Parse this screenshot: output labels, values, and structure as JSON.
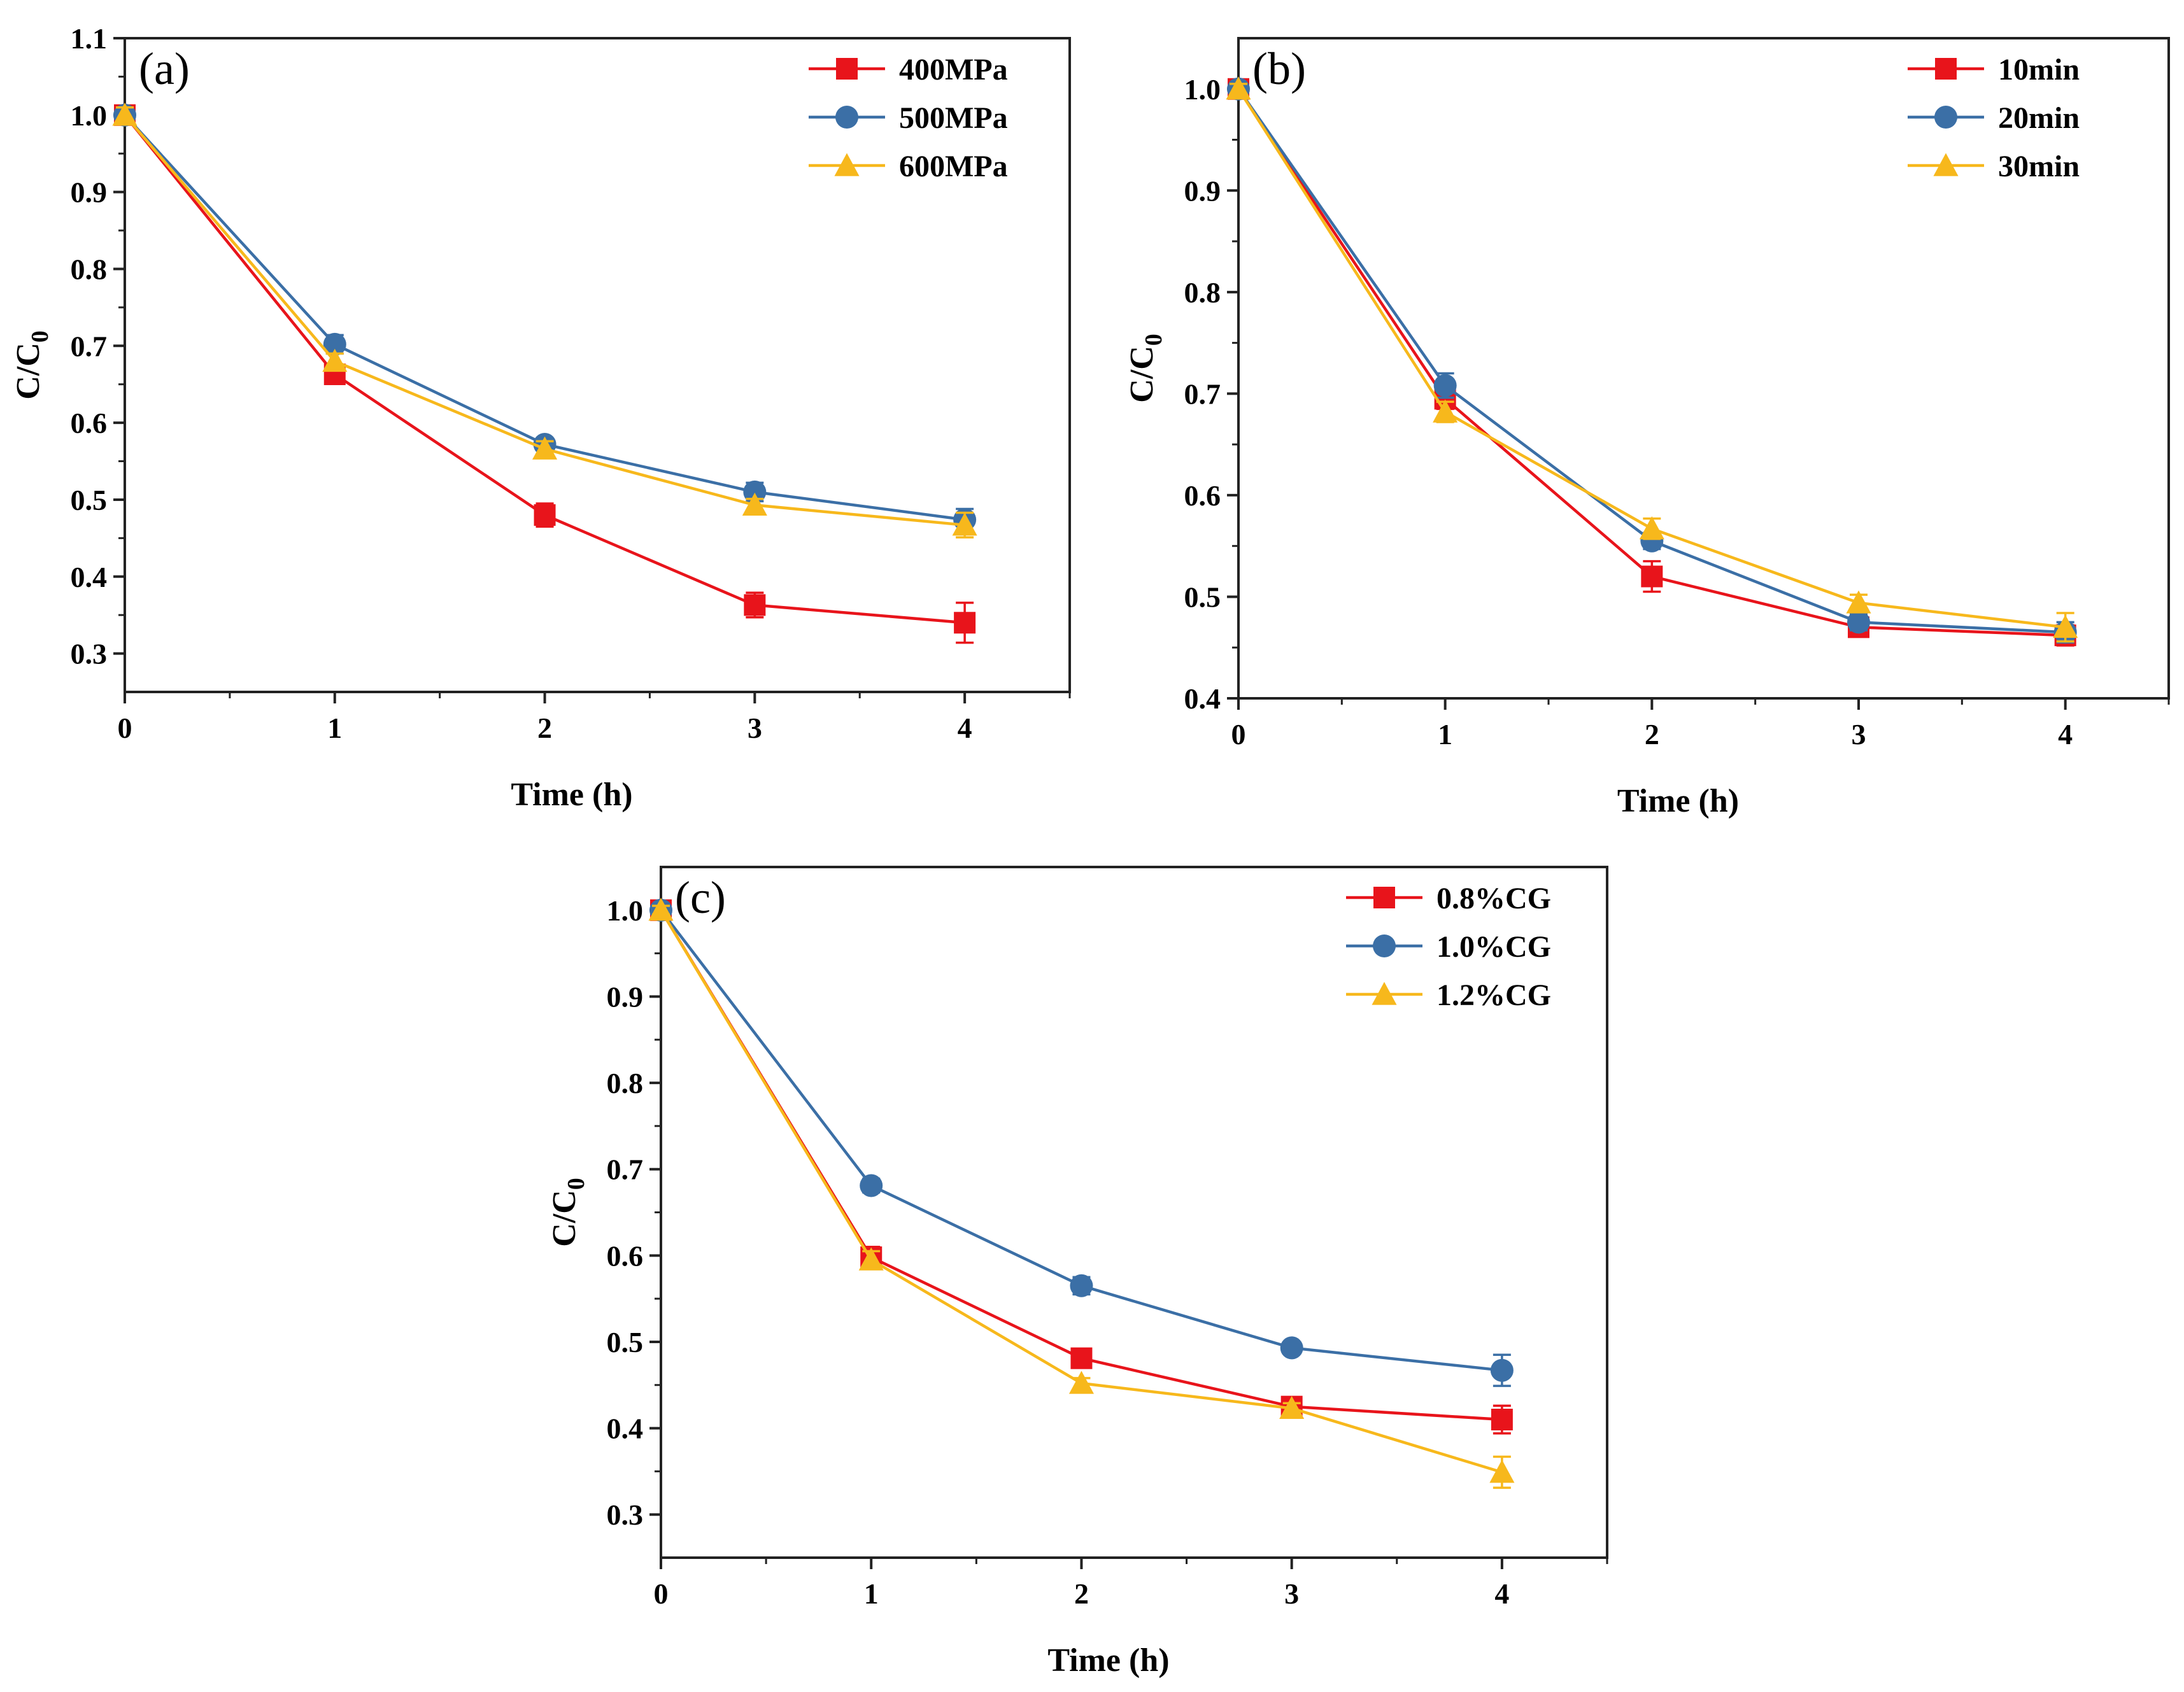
{
  "colors": {
    "red": "#e8141b",
    "blue": "#3b6fa6",
    "yellow": "#f7b81c"
  },
  "chart_data": [
    {
      "type": "line",
      "panel_label": "(a)",
      "xlabel": "Time (h)",
      "ylabel": "C/C",
      "ylabel_sub": "0",
      "xlim": [
        0,
        4.5
      ],
      "ylim": [
        0.25,
        1.1
      ],
      "xticks": [
        0,
        1,
        2,
        3,
        4
      ],
      "yticks": [
        0.3,
        0.4,
        0.5,
        0.6,
        0.7,
        0.8,
        0.9,
        1.0,
        1.1
      ],
      "ytick_labels": [
        "0.3",
        "0.4",
        "0.5",
        "0.6",
        "0.7",
        "0.8",
        "0.9",
        "1.0",
        "1.1"
      ],
      "legend_position": "top-right",
      "x": [
        0,
        1,
        2,
        3,
        4
      ],
      "series": [
        {
          "name": "400MPa",
          "color": "red",
          "marker": "square",
          "values": [
            1.0,
            0.663,
            0.48,
            0.363,
            0.34
          ],
          "errors": [
            0.01,
            0.008,
            0.015,
            0.016,
            0.026
          ]
        },
        {
          "name": "500MPa",
          "color": "blue",
          "marker": "circle",
          "values": [
            1.0,
            0.702,
            0.572,
            0.51,
            0.474
          ],
          "errors": [
            0.01,
            0.012,
            0.008,
            0.012,
            0.014
          ]
        },
        {
          "name": "600MPa",
          "color": "yellow",
          "marker": "triangle",
          "values": [
            1.0,
            0.68,
            0.566,
            0.493,
            0.467
          ],
          "errors": [
            0.01,
            0.01,
            0.01,
            0.008,
            0.016
          ]
        }
      ]
    },
    {
      "type": "line",
      "panel_label": "(b)",
      "xlabel": "Time (h)",
      "ylabel": "C/C",
      "ylabel_sub": "0",
      "xlim": [
        0,
        4.5
      ],
      "ylim": [
        0.4,
        1.05
      ],
      "xticks": [
        0,
        1,
        2,
        3,
        4
      ],
      "yticks": [
        0.4,
        0.5,
        0.6,
        0.7,
        0.8,
        0.9,
        1.0
      ],
      "ytick_labels": [
        "0.4",
        "0.5",
        "0.6",
        "0.7",
        "0.8",
        "0.9",
        "1.0"
      ],
      "legend_position": "top-right",
      "x": [
        0,
        1,
        2,
        3,
        4
      ],
      "series": [
        {
          "name": "10min",
          "color": "red",
          "marker": "square",
          "values": [
            1.0,
            0.695,
            0.52,
            0.47,
            0.462
          ],
          "errors": [
            0.005,
            0.01,
            0.015,
            0.008,
            0.01
          ]
        },
        {
          "name": "20min",
          "color": "blue",
          "marker": "circle",
          "values": [
            1.0,
            0.708,
            0.555,
            0.475,
            0.465
          ],
          "errors": [
            0.005,
            0.012,
            0.008,
            0.008,
            0.01
          ]
        },
        {
          "name": "30min",
          "color": "yellow",
          "marker": "triangle",
          "values": [
            1.0,
            0.682,
            0.567,
            0.494,
            0.47
          ],
          "errors": [
            0.005,
            0.01,
            0.01,
            0.008,
            0.014
          ]
        }
      ]
    },
    {
      "type": "line",
      "panel_label": "(c)",
      "xlabel": "Time (h)",
      "ylabel": "C/C",
      "ylabel_sub": "0",
      "xlim": [
        0,
        4.5
      ],
      "ylim": [
        0.25,
        1.05
      ],
      "xticks": [
        0,
        1,
        2,
        3,
        4
      ],
      "yticks": [
        0.3,
        0.4,
        0.5,
        0.6,
        0.7,
        0.8,
        0.9,
        1.0
      ],
      "ytick_labels": [
        "0.3",
        "0.4",
        "0.5",
        "0.6",
        "0.7",
        "0.8",
        "0.9",
        "1.0"
      ],
      "legend_position": "top-right",
      "x": [
        0,
        1,
        2,
        3,
        4
      ],
      "series": [
        {
          "name": "0.8%CG",
          "color": "red",
          "marker": "square",
          "values": [
            1.0,
            0.598,
            0.481,
            0.425,
            0.41
          ],
          "errors": [
            0.005,
            0.012,
            0.008,
            0.008,
            0.016
          ]
        },
        {
          "name": "1.0%CG",
          "color": "blue",
          "marker": "circle",
          "values": [
            1.0,
            0.681,
            0.565,
            0.493,
            0.467
          ],
          "errors": [
            0.005,
            0.008,
            0.01,
            0.006,
            0.018
          ]
        },
        {
          "name": "1.2%CG",
          "color": "yellow",
          "marker": "triangle",
          "values": [
            1.0,
            0.595,
            0.452,
            0.423,
            0.349
          ],
          "errors": [
            0.005,
            0.01,
            0.006,
            0.006,
            0.018
          ]
        }
      ]
    }
  ]
}
